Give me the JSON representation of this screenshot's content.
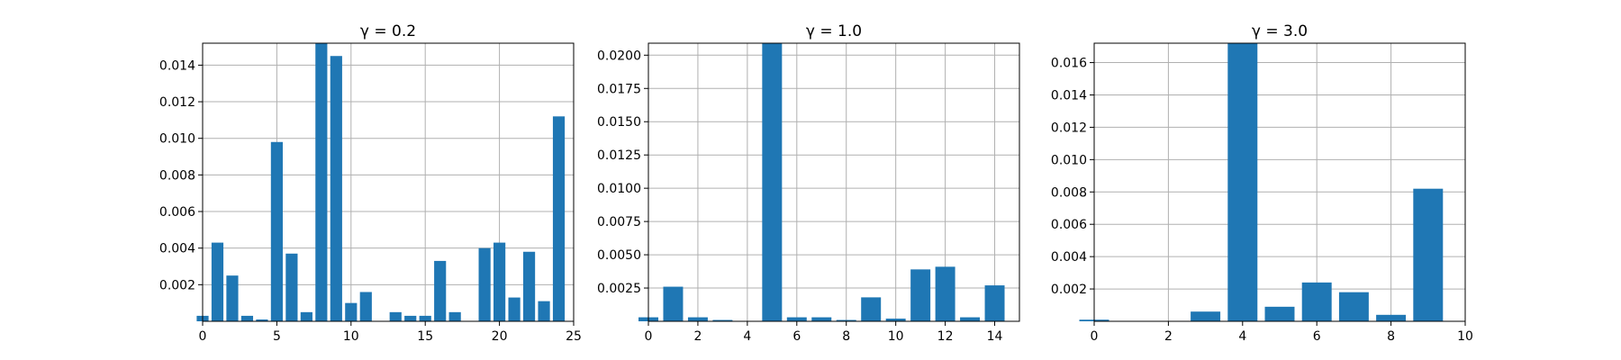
{
  "chart_data": [
    {
      "type": "bar",
      "title": "γ = 0.2",
      "xlabel": "",
      "ylabel": "",
      "grid": true,
      "color": "#1f77b4",
      "x": [
        0,
        1,
        2,
        3,
        4,
        5,
        6,
        7,
        8,
        9,
        10,
        11,
        12,
        13,
        14,
        15,
        16,
        17,
        18,
        19,
        20,
        21,
        22,
        23,
        24
      ],
      "values": [
        0.0003,
        0.0043,
        0.0025,
        0.0003,
        0.0001,
        0.0098,
        0.0037,
        0.0005,
        0.0153,
        0.0145,
        0.001,
        0.0016,
        0.0,
        0.0005,
        0.0003,
        0.0003,
        0.0033,
        0.0005,
        0.0,
        0.004,
        0.0043,
        0.0013,
        0.0038,
        0.0011,
        0.0112
      ],
      "xlim": [
        0,
        25
      ],
      "ylim": [
        0,
        0.0152
      ],
      "xticks": [
        "0",
        "5",
        "10",
        "15",
        "20",
        "25"
      ],
      "yticks": [
        "0.002",
        "0.004",
        "0.006",
        "0.008",
        "0.010",
        "0.012",
        "0.014"
      ]
    },
    {
      "type": "bar",
      "title": "γ = 1.0",
      "xlabel": "",
      "ylabel": "",
      "grid": true,
      "color": "#1f77b4",
      "x": [
        0,
        1,
        2,
        3,
        4,
        5,
        6,
        7,
        8,
        9,
        10,
        11,
        12,
        13,
        14
      ],
      "values": [
        0.0003,
        0.0026,
        0.0003,
        0.0001,
        0.0,
        0.0209,
        0.0003,
        0.0003,
        0.0001,
        0.0018,
        0.0002,
        0.0039,
        0.0041,
        0.0003,
        0.0027
      ],
      "xlim": [
        0,
        15
      ],
      "ylim": [
        0,
        0.0209
      ],
      "xticks": [
        "0",
        "2",
        "4",
        "6",
        "8",
        "10",
        "12",
        "14"
      ],
      "yticks": [
        "0.0025",
        "0.0050",
        "0.0075",
        "0.0100",
        "0.0125",
        "0.0150",
        "0.0175",
        "0.0200"
      ]
    },
    {
      "type": "bar",
      "title": "γ = 3.0",
      "xlabel": "",
      "ylabel": "",
      "grid": true,
      "color": "#1f77b4",
      "x": [
        0,
        1,
        2,
        3,
        4,
        5,
        6,
        7,
        8,
        9
      ],
      "values": [
        0.0001,
        0.0,
        0.0,
        0.0006,
        0.0172,
        0.0009,
        0.0024,
        0.0018,
        0.0004,
        0.0082
      ],
      "xlim": [
        0,
        10
      ],
      "ylim": [
        0,
        0.0172
      ],
      "xticks": [
        "0",
        "2",
        "4",
        "6",
        "8",
        "10"
      ],
      "yticks": [
        "0.002",
        "0.004",
        "0.006",
        "0.008",
        "0.010",
        "0.012",
        "0.014",
        "0.016"
      ]
    }
  ]
}
